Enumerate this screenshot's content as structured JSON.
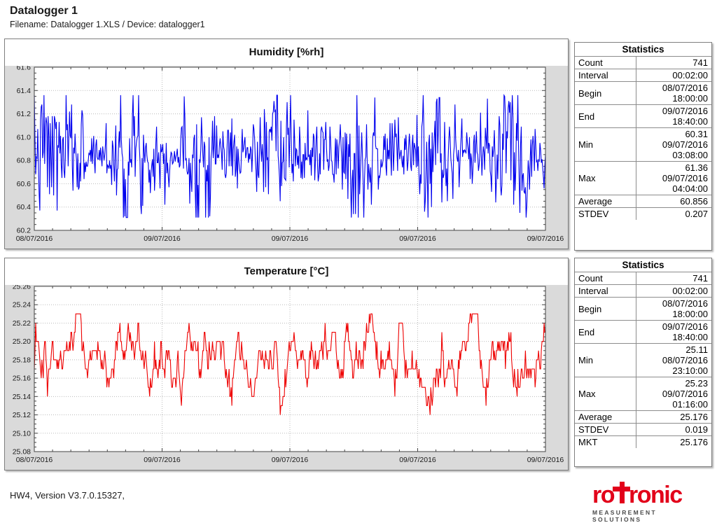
{
  "header": {
    "title": "Datalogger 1",
    "subtitle": "Filename: Datalogger 1.XLS / Device: datalogger1"
  },
  "chart_data": [
    {
      "type": "line",
      "title": "Humidity [%rh]",
      "line_color": "#0000ee",
      "ylim": [
        60.2,
        61.6
      ],
      "ytick_step": 0.2,
      "ytick_decimals": 1,
      "xtick_labels": [
        "08/07/2016",
        "09/07/2016",
        "09/07/2016",
        "09/07/2016",
        "09/07/2016"
      ],
      "grid": "dotted",
      "series": {
        "name": "Humidity",
        "count": 741,
        "mean": 60.856,
        "stdev": 0.207,
        "min": 60.31,
        "max": 61.36,
        "ar": 0.25,
        "amp_mod": 0.45,
        "amp_period": 110,
        "quantize": 0.01,
        "seed": 7
      }
    },
    {
      "type": "line",
      "title": "Temperature [°C]",
      "line_color": "#ee0000",
      "ylim": [
        25.08,
        25.26
      ],
      "ytick_step": 0.02,
      "ytick_decimals": 2,
      "xtick_labels": [
        "08/07/2016",
        "09/07/2016",
        "09/07/2016",
        "09/07/2016",
        "09/07/2016"
      ],
      "grid": "dotted",
      "series": {
        "name": "Temperature",
        "count": 741,
        "mean": 25.176,
        "stdev": 0.019,
        "min": 25.11,
        "max": 25.23,
        "ar": 0.85,
        "amp_mod": 0.0,
        "amp_period": 100,
        "quantize": 0.01,
        "seed": 13
      }
    }
  ],
  "stats_tables": [
    {
      "header": "Statistics",
      "rows": [
        {
          "label": "Count",
          "lines": [
            "741"
          ]
        },
        {
          "label": "Interval",
          "lines": [
            "00:02:00"
          ]
        },
        {
          "label": "Begin",
          "lines": [
            "08/07/2016",
            "18:00:00"
          ]
        },
        {
          "label": "End",
          "lines": [
            "09/07/2016",
            "18:40:00"
          ]
        },
        {
          "label": "Min",
          "lines": [
            "60.31",
            "09/07/2016",
            "03:08:00"
          ]
        },
        {
          "label": "Max",
          "lines": [
            "61.36",
            "09/07/2016",
            "04:04:00"
          ]
        },
        {
          "label": "Average",
          "lines": [
            "60.856"
          ]
        },
        {
          "label": "STDEV",
          "lines": [
            "0.207"
          ]
        }
      ]
    },
    {
      "header": "Statistics",
      "rows": [
        {
          "label": "Count",
          "lines": [
            "741"
          ]
        },
        {
          "label": "Interval",
          "lines": [
            "00:02:00"
          ]
        },
        {
          "label": "Begin",
          "lines": [
            "08/07/2016",
            "18:00:00"
          ]
        },
        {
          "label": "End",
          "lines": [
            "09/07/2016",
            "18:40:00"
          ]
        },
        {
          "label": "Min",
          "lines": [
            "25.11",
            "08/07/2016",
            "23:10:00"
          ]
        },
        {
          "label": "Max",
          "lines": [
            "25.23",
            "09/07/2016",
            "01:16:00"
          ]
        },
        {
          "label": "Average",
          "lines": [
            "25.176"
          ]
        },
        {
          "label": "STDEV",
          "lines": [
            "0.019"
          ]
        },
        {
          "label": "MKT",
          "lines": [
            "25.176"
          ]
        }
      ]
    }
  ],
  "footer": {
    "version_text": "HW4, Version V3.7.0.15327,",
    "logo": {
      "part1": "ro",
      "part2": "ronic",
      "tagline": "MEASUREMENT SOLUTIONS",
      "brand_color": "#e2001a"
    }
  },
  "colors": {
    "panel_background": "#dadada",
    "plot_background": "#ffffff",
    "grid_line": "#bbbbbb",
    "axis_line": "#444444",
    "panel_border": "#7f7f7f"
  }
}
